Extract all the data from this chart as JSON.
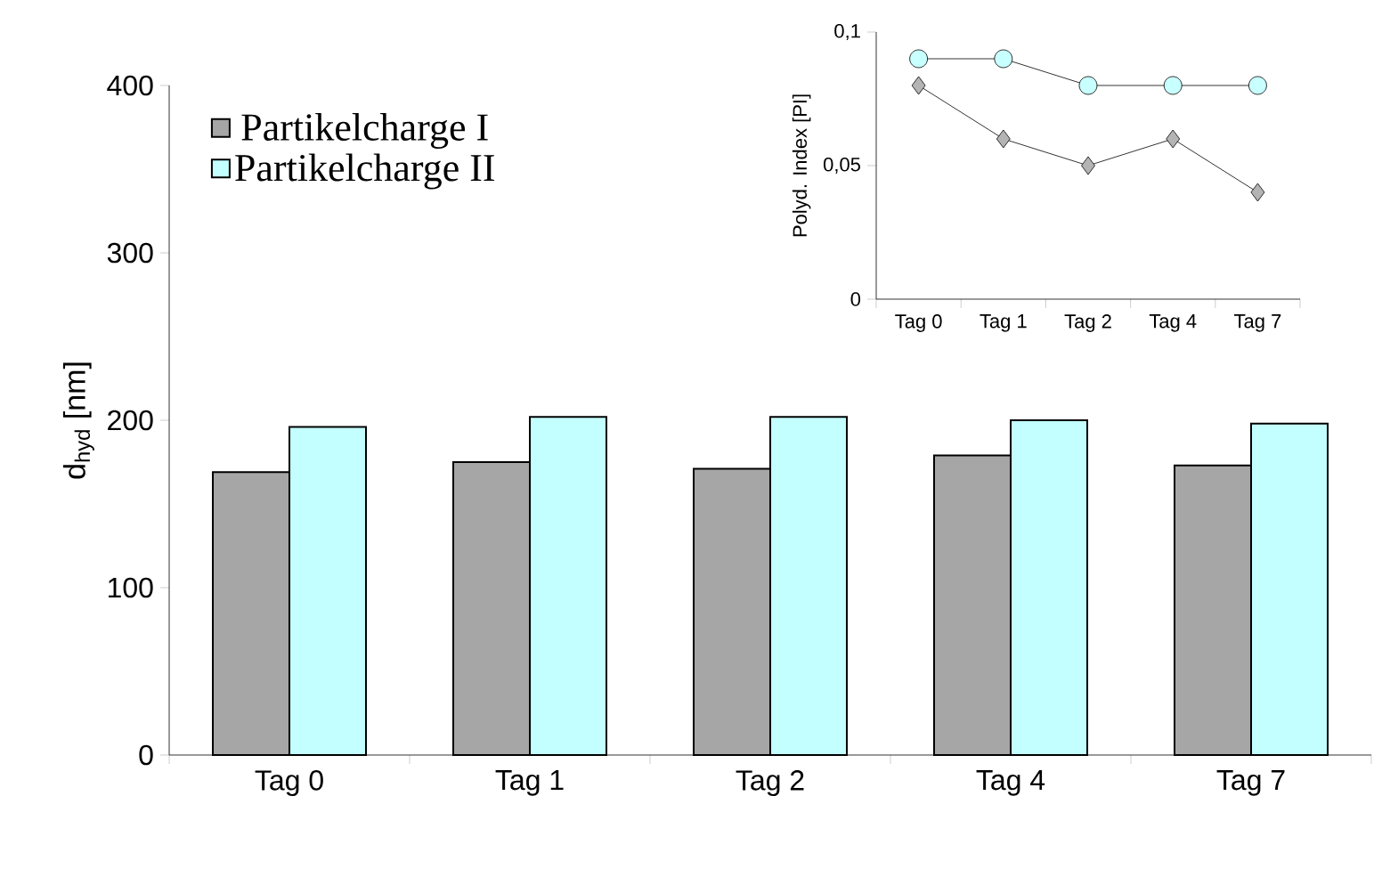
{
  "chart_data": [
    {
      "type": "bar",
      "ylabel": "d$_{hyd}$ [nm]",
      "categories": [
        "Tag 0",
        "Tag 1",
        "Tag 2",
        "Tag 4",
        "Tag 7"
      ],
      "series": [
        {
          "name": "Partikelcharge I",
          "color": "#a6a6a6",
          "values": [
            169,
            175,
            171,
            179,
            173
          ]
        },
        {
          "name": "Partikelcharge II",
          "color": "#c4ffff",
          "values": [
            196,
            202,
            202,
            200,
            198
          ]
        }
      ],
      "ylim": [
        0,
        400
      ],
      "yticks": [
        0,
        100,
        200,
        300,
        400
      ],
      "legend": "top left"
    },
    {
      "type": "line",
      "ylabel": "Polyd. Index [PI]",
      "categories": [
        "Tag 0",
        "Tag 1",
        "Tag 2",
        "Tag 4",
        "Tag 7"
      ],
      "series": [
        {
          "color": "#b4b4b4",
          "marker": "diamond",
          "values": [
            0.08,
            0.06,
            0.05,
            0.06,
            0.04
          ]
        },
        {
          "color": "#c8ffff",
          "marker": "circle",
          "values": [
            0.09,
            0.09,
            0.08,
            0.08,
            0.08
          ]
        }
      ],
      "ylim": [
        0,
        0.1
      ],
      "yticks": [
        0,
        {
          "value": 0.05,
          "label": "0,05"
        },
        {
          "value": 0.1,
          "label": "0,1"
        }
      ]
    }
  ]
}
